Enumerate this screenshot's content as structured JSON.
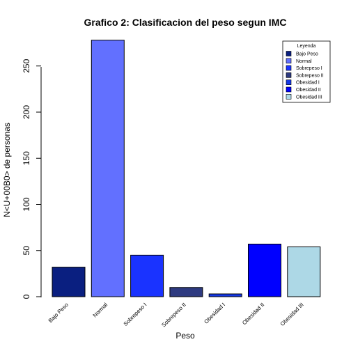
{
  "chart_data": {
    "type": "bar",
    "title": "Grafico 2: Clasificacion del peso segun IMC",
    "xlabel": "Peso",
    "ylabel": "N<U+00B0> de personas",
    "categories": [
      "Bajo Peso",
      "Normal",
      "Sobrepeso I",
      "Sobrepeso II",
      "Obesidad I",
      "Obesidad II",
      "Obesidad III"
    ],
    "values": [
      32,
      278,
      45,
      10,
      3,
      57,
      54
    ],
    "colors": [
      "#0a1f80",
      "#6270ff",
      "#1a33ff",
      "#2e3a80",
      "#1438e6",
      "#0000ff",
      "#add8e6"
    ],
    "ylim": [
      0,
      278
    ],
    "yticks": [
      0,
      50,
      100,
      150,
      200,
      250
    ],
    "ytick_labels": [
      "0",
      "50",
      "100",
      "150",
      "200",
      "250"
    ],
    "xtick_labels": [
      "Bajo Peso",
      "Normal",
      "Sobrepeso I",
      "Sobrepeso II",
      "Obesidad I",
      "Obesidad II",
      "Obesidad III"
    ],
    "legend": {
      "title": "Leyenda",
      "position": "top-right",
      "entries": [
        "Bajo Peso",
        "Normal",
        "Sobrepeso I",
        "Sobrepeso II",
        "Obesidad I",
        "Obesidad II",
        "Obesidad III"
      ]
    },
    "grid": false
  }
}
